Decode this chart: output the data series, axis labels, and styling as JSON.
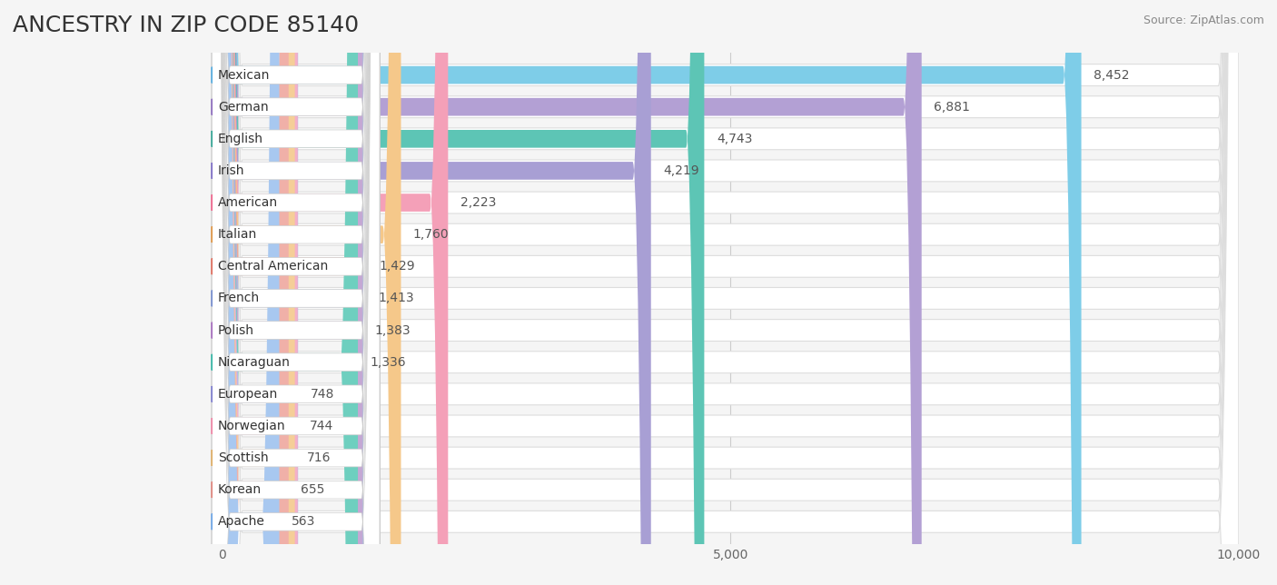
{
  "title": "Ancestry in Zip Code 85140",
  "source": "Source: ZipAtlas.com",
  "categories": [
    "Mexican",
    "German",
    "English",
    "Irish",
    "American",
    "Italian",
    "Central American",
    "French",
    "Polish",
    "Nicaraguan",
    "European",
    "Norwegian",
    "Scottish",
    "Korean",
    "Apache"
  ],
  "values": [
    8452,
    6881,
    4743,
    4219,
    2223,
    1760,
    1429,
    1413,
    1383,
    1336,
    748,
    744,
    716,
    655,
    563
  ],
  "bar_colors": [
    "#7ecde8",
    "#b3a0d4",
    "#5dc5b5",
    "#a89fd4",
    "#f4a0b8",
    "#f5c88a",
    "#f0a898",
    "#a8bce0",
    "#c4a8d4",
    "#6ecfbf",
    "#b8b8e8",
    "#f4b0c8",
    "#f5ce98",
    "#f0b0a8",
    "#a8c8f0"
  ],
  "circle_colors": [
    "#5aaee0",
    "#9070c0",
    "#38a898",
    "#8070c8",
    "#f06890",
    "#e09848",
    "#e07060",
    "#7890d0",
    "#a870c0",
    "#38b8a8",
    "#8080d0",
    "#f088a8",
    "#e0b068",
    "#e08880",
    "#70a8e8"
  ],
  "xlim": [
    0,
    10000
  ],
  "xticks": [
    0,
    5000,
    10000
  ],
  "xticklabels": [
    "0",
    "5,000",
    "10,000"
  ],
  "background_color": "#f5f5f5",
  "bar_bg_color": "#ffffff",
  "row_bg_color": "#f0f0f0",
  "title_fontsize": 18,
  "bar_height": 0.68,
  "value_fontsize": 10,
  "label_fontsize": 10
}
